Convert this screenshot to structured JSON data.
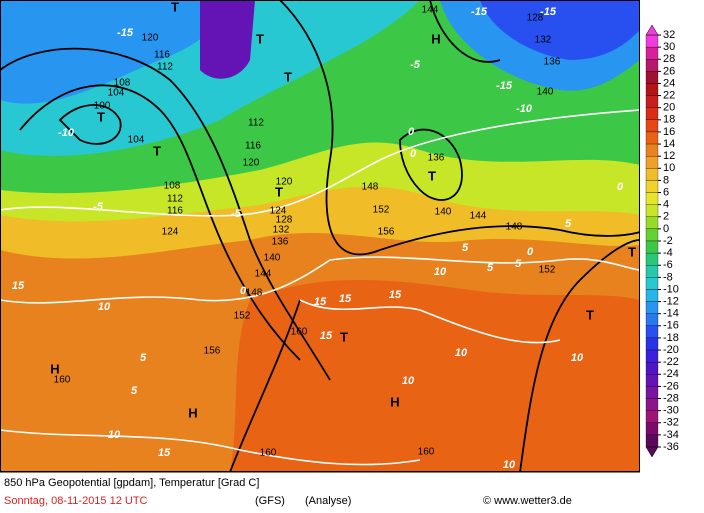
{
  "map": {
    "heights": [
      144,
      128,
      132,
      136,
      140,
      120,
      116,
      112,
      108,
      104,
      100,
      104,
      108,
      112,
      116,
      124,
      112,
      116,
      120,
      120,
      124,
      128,
      132,
      136,
      140,
      144,
      148,
      152,
      156,
      160,
      160,
      160,
      160,
      136,
      140,
      144,
      148,
      152,
      148,
      152,
      156
    ],
    "isotherms": [
      -15,
      -10,
      -5,
      -5,
      0,
      5,
      5,
      10,
      10,
      15,
      15,
      15,
      15,
      15,
      15,
      10,
      10,
      10,
      10,
      5,
      5,
      5,
      10,
      0,
      5,
      0,
      -5,
      -10,
      -15,
      -15,
      -15,
      0,
      0
    ],
    "pressure_centers": [
      "H",
      "H",
      "H",
      "H",
      "T",
      "T",
      "T",
      "T",
      "T",
      "T",
      "T",
      "T",
      "T",
      "T"
    ],
    "colorbar": {
      "ticks": [
        32,
        30,
        28,
        26,
        24,
        22,
        20,
        18,
        16,
        14,
        12,
        10,
        8,
        6,
        4,
        2,
        0,
        -2,
        -4,
        -6,
        -8,
        -10,
        -12,
        -14,
        -16,
        -18,
        -20,
        -22,
        -24,
        -26,
        -28,
        -30,
        -32,
        -34,
        -36
      ],
      "colors": [
        "#f03cdc",
        "#d8209c",
        "#b8186c",
        "#a01030",
        "#b41414",
        "#c81e1e",
        "#dc2d14",
        "#e84614",
        "#e86414",
        "#e8821e",
        "#f0a028",
        "#f0bc28",
        "#f0d228",
        "#e6e628",
        "#c8e628",
        "#96dc28",
        "#64d232",
        "#3cc846",
        "#28c878",
        "#28c8aa",
        "#28c8d2",
        "#28b4e6",
        "#2896f0",
        "#2878f0",
        "#2850f0",
        "#2832e6",
        "#3c1edc",
        "#5014c8",
        "#6414b4",
        "#7814a0",
        "#8c148c",
        "#a01478",
        "#7c0a6e",
        "#5a0a5a"
      ]
    }
  },
  "footer": {
    "title": "850 hPa Geopotential [gpdam], Temperatur [Grad C]",
    "date": "Sonntag, 08-11-2015  12 UTC",
    "model": "(GFS)",
    "run": "(Analyse)",
    "source": "© www.wetter3.de"
  }
}
